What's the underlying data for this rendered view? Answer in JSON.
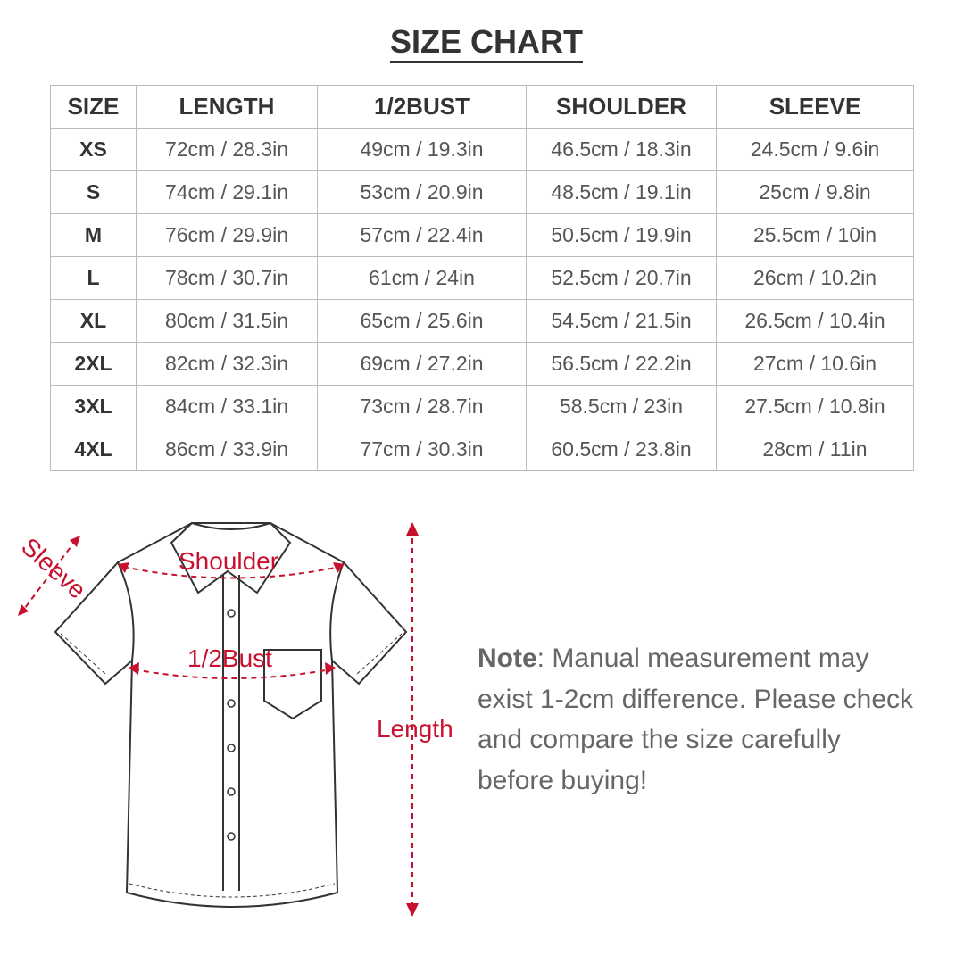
{
  "title": "SIZE CHART",
  "table": {
    "headers": [
      "SIZE",
      "LENGTH",
      "1/2BUST",
      "SHOULDER",
      "SLEEVE"
    ],
    "rows": [
      [
        "XS",
        "72cm / 28.3in",
        "49cm / 19.3in",
        "46.5cm / 18.3in",
        "24.5cm / 9.6in"
      ],
      [
        "S",
        "74cm / 29.1in",
        "53cm / 20.9in",
        "48.5cm / 19.1in",
        "25cm / 9.8in"
      ],
      [
        "M",
        "76cm / 29.9in",
        "57cm / 22.4in",
        "50.5cm / 19.9in",
        "25.5cm / 10in"
      ],
      [
        "L",
        "78cm / 30.7in",
        "61cm / 24in",
        "52.5cm / 20.7in",
        "26cm / 10.2in"
      ],
      [
        "XL",
        "80cm / 31.5in",
        "65cm / 25.6in",
        "54.5cm / 21.5in",
        "26.5cm / 10.4in"
      ],
      [
        "2XL",
        "82cm / 32.3in",
        "69cm / 27.2in",
        "56.5cm / 22.2in",
        "27cm / 10.6in"
      ],
      [
        "3XL",
        "84cm / 33.1in",
        "73cm / 28.7in",
        "58.5cm / 23in",
        "27.5cm / 10.8in"
      ],
      [
        "4XL",
        "86cm / 33.9in",
        "77cm / 30.3in",
        "60.5cm / 23.8in",
        "28cm / 11in"
      ]
    ]
  },
  "diagram": {
    "sleeve": "Sleeve",
    "shoulder": "Shoulder",
    "bust": "1/2Bust",
    "length": "Length",
    "accent": "#c8102e"
  },
  "note": {
    "label": "Note",
    "text": ": Manual measurement may exist 1-2cm difference. Please check and compare the size carefully before buying!"
  }
}
